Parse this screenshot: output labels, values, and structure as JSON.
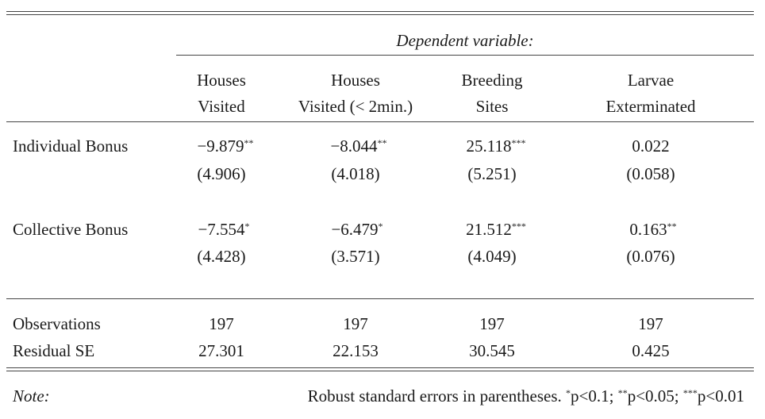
{
  "dependent_variable_label": "Dependent variable:",
  "columns": [
    {
      "line1": "Houses",
      "line2": "Visited"
    },
    {
      "line1": "Houses",
      "line2": "Visited (< 2min.)"
    },
    {
      "line1": "Breeding",
      "line2": "Sites"
    },
    {
      "line1": "Larvae",
      "line2": "Exterminated"
    }
  ],
  "rows": [
    {
      "label": "Individual Bonus",
      "coef": [
        "−9.879",
        "−8.044",
        "25.118",
        "0.022"
      ],
      "stars": [
        "**",
        "**",
        "***",
        ""
      ],
      "se": [
        "(4.906)",
        "(4.018)",
        "(5.251)",
        "(0.058)"
      ]
    },
    {
      "label": "Collective Bonus",
      "coef": [
        "−7.554",
        "−6.479",
        "21.512",
        "0.163"
      ],
      "stars": [
        "*",
        "*",
        "***",
        "**"
      ],
      "se": [
        "(4.428)",
        "(3.571)",
        "(4.049)",
        "(0.076)"
      ]
    }
  ],
  "stats": [
    {
      "label": "Observations",
      "values": [
        "197",
        "197",
        "197",
        "197"
      ]
    },
    {
      "label": "Residual SE",
      "values": [
        "27.301",
        "22.153",
        "30.545",
        "0.425"
      ]
    }
  ],
  "note": {
    "label": "Note:",
    "text": "Robust standard errors in parentheses.",
    "star1": "*",
    "p1": "p<0.1;",
    "star2": "**",
    "p2": "p<0.05;",
    "star3": "***",
    "p3": "p<0.01"
  }
}
